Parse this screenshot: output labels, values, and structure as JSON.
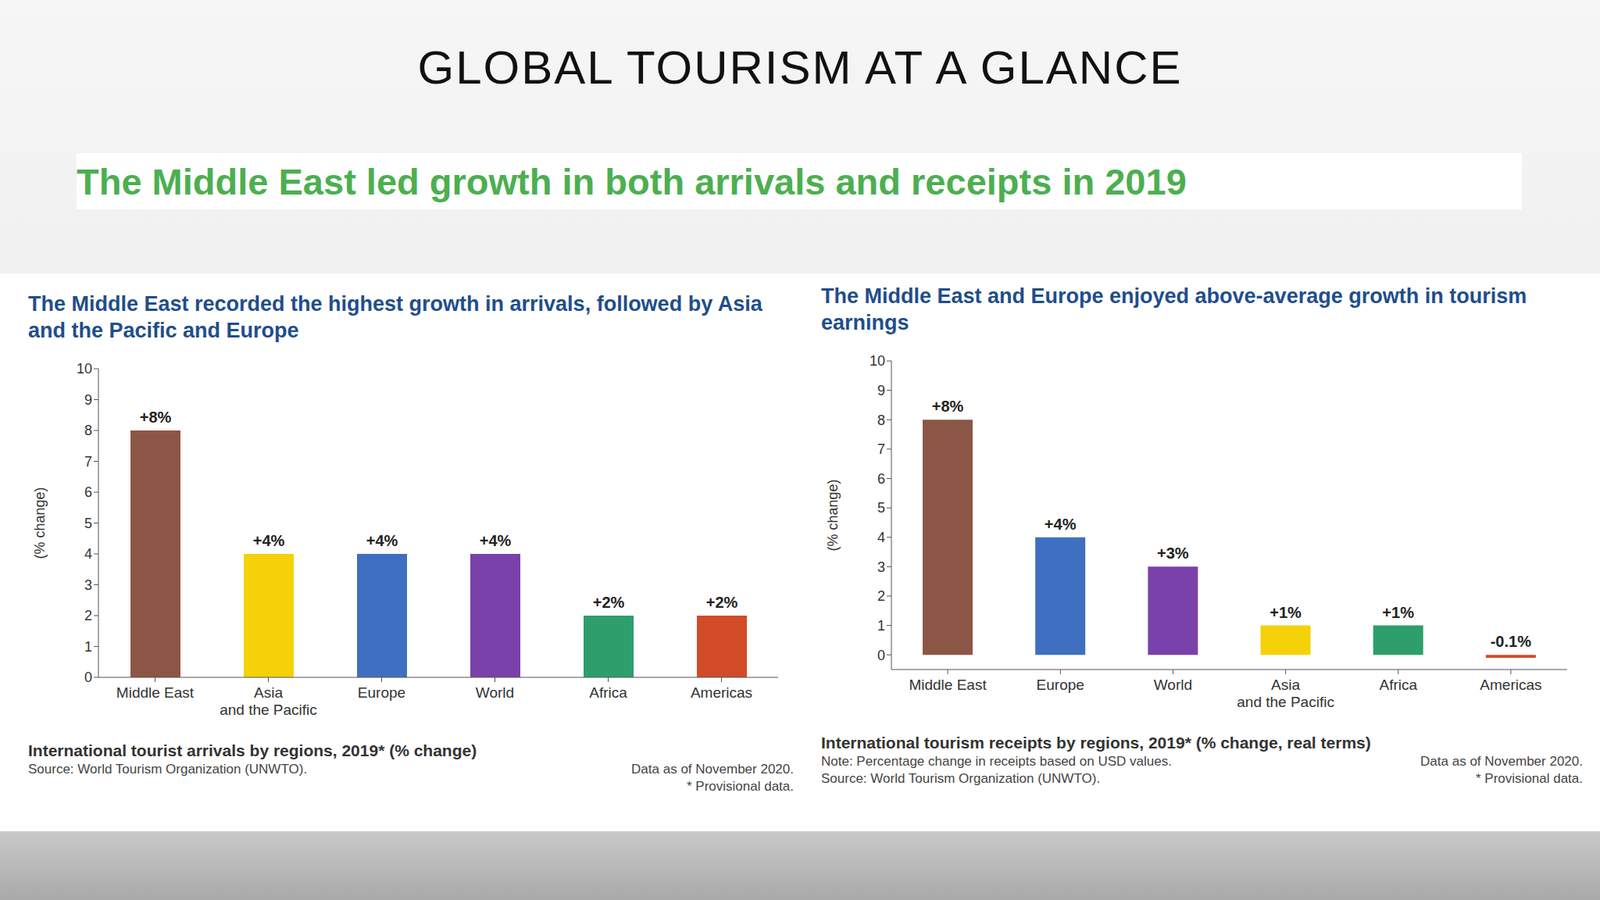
{
  "title": "GLOBAL TOURISM AT A GLANCE",
  "subtitle": "The Middle East led growth in both arrivals and receipts in 2019",
  "chart_data": [
    {
      "type": "bar",
      "title": "The Middle East recorded the highest growth in arrivals, followed by Asia and the Pacific and Europe",
      "ylabel": "(% change)",
      "categories": [
        "Middle East",
        "Asia and the Pacific",
        "Europe",
        "World",
        "Africa",
        "Americas"
      ],
      "values": [
        8,
        4,
        4,
        4,
        2,
        2
      ],
      "value_labels": [
        "+8%",
        "+4%",
        "+4%",
        "+4%",
        "+2%",
        "+2%"
      ],
      "colors": [
        "#8c5646",
        "#f5d10a",
        "#3f6fc0",
        "#7a41aa",
        "#2e9e6c",
        "#d24b27"
      ],
      "data_labels": true,
      "ylim": [
        0,
        10
      ],
      "yticks": [
        0,
        1,
        2,
        3,
        4,
        5,
        6,
        7,
        8,
        9,
        10
      ],
      "grid": false,
      "caption": "International tourist arrivals by regions, 2019* (% change)",
      "source": "Source: World Tourism Organization (UNWTO).",
      "annotations": [
        "Data as of November 2020.",
        "* Provisional data."
      ]
    },
    {
      "type": "bar",
      "title": "The Middle East and Europe enjoyed above-average growth in tourism earnings",
      "ylabel": "(% change)",
      "categories": [
        "Middle East",
        "Europe",
        "World",
        "Asia and the Pacific",
        "Africa",
        "Americas"
      ],
      "values": [
        8,
        4,
        3,
        1,
        1,
        -0.1
      ],
      "value_labels": [
        "+8%",
        "+4%",
        "+3%",
        "+1%",
        "+1%",
        "-0.1%"
      ],
      "colors": [
        "#8c5646",
        "#3f6fc0",
        "#7a41aa",
        "#f5d10a",
        "#2e9e6c",
        "#d24b27"
      ],
      "data_labels": true,
      "ylim": [
        -0.5,
        10
      ],
      "yticks": [
        0,
        1,
        2,
        3,
        4,
        5,
        6,
        7,
        8,
        9,
        10
      ],
      "grid": false,
      "caption": "International tourism receipts by regions, 2019* (% change, real terms)",
      "note": "Note: Percentage change in receipts based on USD values.",
      "source": "Source: World Tourism Organization (UNWTO).",
      "annotations": [
        "Data as of November 2020.",
        "* Provisional data."
      ]
    }
  ]
}
